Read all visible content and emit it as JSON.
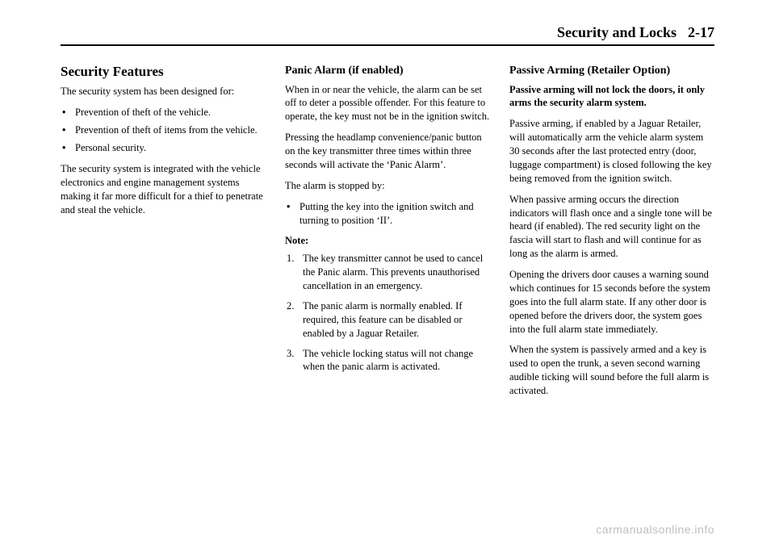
{
  "header": {
    "section": "Security and Locks",
    "page": "2-17"
  },
  "col1": {
    "heading": "Security Features",
    "intro": "The security system has been designed for:",
    "bullets": [
      "Prevention of theft of the vehicle.",
      "Prevention of theft of items from the vehicle.",
      "Personal security."
    ],
    "para2": "The security system is integrated with the vehicle electronics and engine management systems making it far more difficult for a thief to penetrate and steal the vehicle."
  },
  "col2": {
    "heading": "Panic Alarm (if enabled)",
    "para1": "When in or near the vehicle, the alarm can be set off to deter a possible offender. For this feature to operate, the key must not be in the ignition switch.",
    "para2": "Pressing the headlamp convenience/panic button on the key transmitter three times within three seconds will activate the ‘Panic Alarm’.",
    "para3": "The alarm is stopped by:",
    "bullets": [
      "Putting the key into the ignition switch and turning to position ‘II’."
    ],
    "noteLabel": "Note:",
    "notes": [
      "The key transmitter cannot be used to cancel the Panic alarm. This prevents unauthorised cancellation in an emergency.",
      "The panic alarm is normally enabled. If required, this feature can be disabled or enabled by a Jaguar Retailer.",
      "The vehicle locking status will not change when the panic alarm is activated."
    ]
  },
  "col3": {
    "heading": "Passive Arming (Retailer Option)",
    "boldPara": "Passive arming will not lock the doors, it only arms the security alarm system.",
    "para1": "Passive arming, if enabled by a Jaguar Retailer, will automatically arm the vehicle alarm system 30 seconds after the last protected entry (door, luggage compartment) is closed following the key being removed from the ignition switch.",
    "para2": "When passive arming occurs the direction indicators will flash once and a single tone will be heard (if enabled). The red security light on the fascia will start to flash and will continue for as long as the alarm is armed.",
    "para3": "Opening the drivers door causes a warning sound which continues for 15 seconds before the system goes into the full alarm state. If any other door is opened before the drivers door, the system goes into the full alarm state immediately.",
    "para4": "When the system is passively armed and a key is used to open the trunk, a seven second warning audible ticking will sound before the full alarm is activated."
  },
  "watermark": "carmanualsonline.info"
}
